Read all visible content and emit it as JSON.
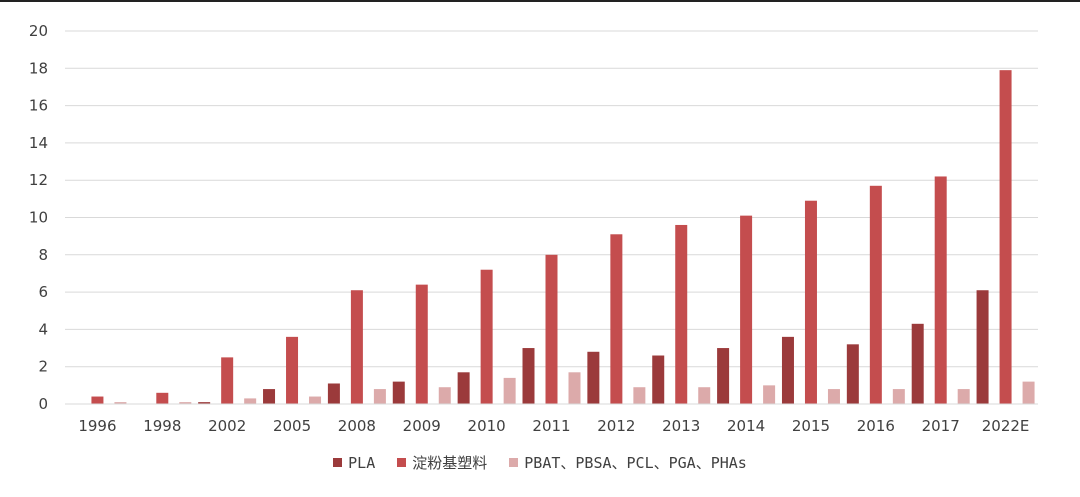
{
  "chart_data": {
    "type": "bar",
    "categories": [
      "1996",
      "1998",
      "2002",
      "2005",
      "2008",
      "2009",
      "2010",
      "2011",
      "2012",
      "2013",
      "2014",
      "2015",
      "2016",
      "2017",
      "2022E"
    ],
    "series": [
      {
        "name": "PLA",
        "color": "#9b3a3b",
        "values": [
          0,
          0,
          0.1,
          0.8,
          1.1,
          1.2,
          1.7,
          3.0,
          2.8,
          2.6,
          3.0,
          3.6,
          3.2,
          4.3,
          6.1
        ]
      },
      {
        "name": "淀粉基塑料",
        "color": "#c44d4e",
        "values": [
          0.4,
          0.6,
          2.5,
          3.6,
          6.1,
          6.4,
          7.2,
          8.0,
          9.1,
          9.6,
          10.1,
          10.9,
          11.7,
          12.2,
          17.9
        ]
      },
      {
        "name": "PBAT、PBSA、PCL、PGA、PHAs",
        "color": "#dcaaaa",
        "values": [
          0.1,
          0.1,
          0.3,
          0.4,
          0.8,
          0.9,
          1.4,
          1.7,
          0.9,
          0.9,
          1.0,
          0.8,
          0.8,
          0.8,
          1.2
        ]
      }
    ],
    "yticks": [
      "0",
      "2",
      "4",
      "6",
      "8",
      "10",
      "12",
      "14",
      "16",
      "18",
      "20"
    ],
    "ylim": [
      0,
      20
    ],
    "grid": true,
    "legend_position": "bottom-center"
  }
}
